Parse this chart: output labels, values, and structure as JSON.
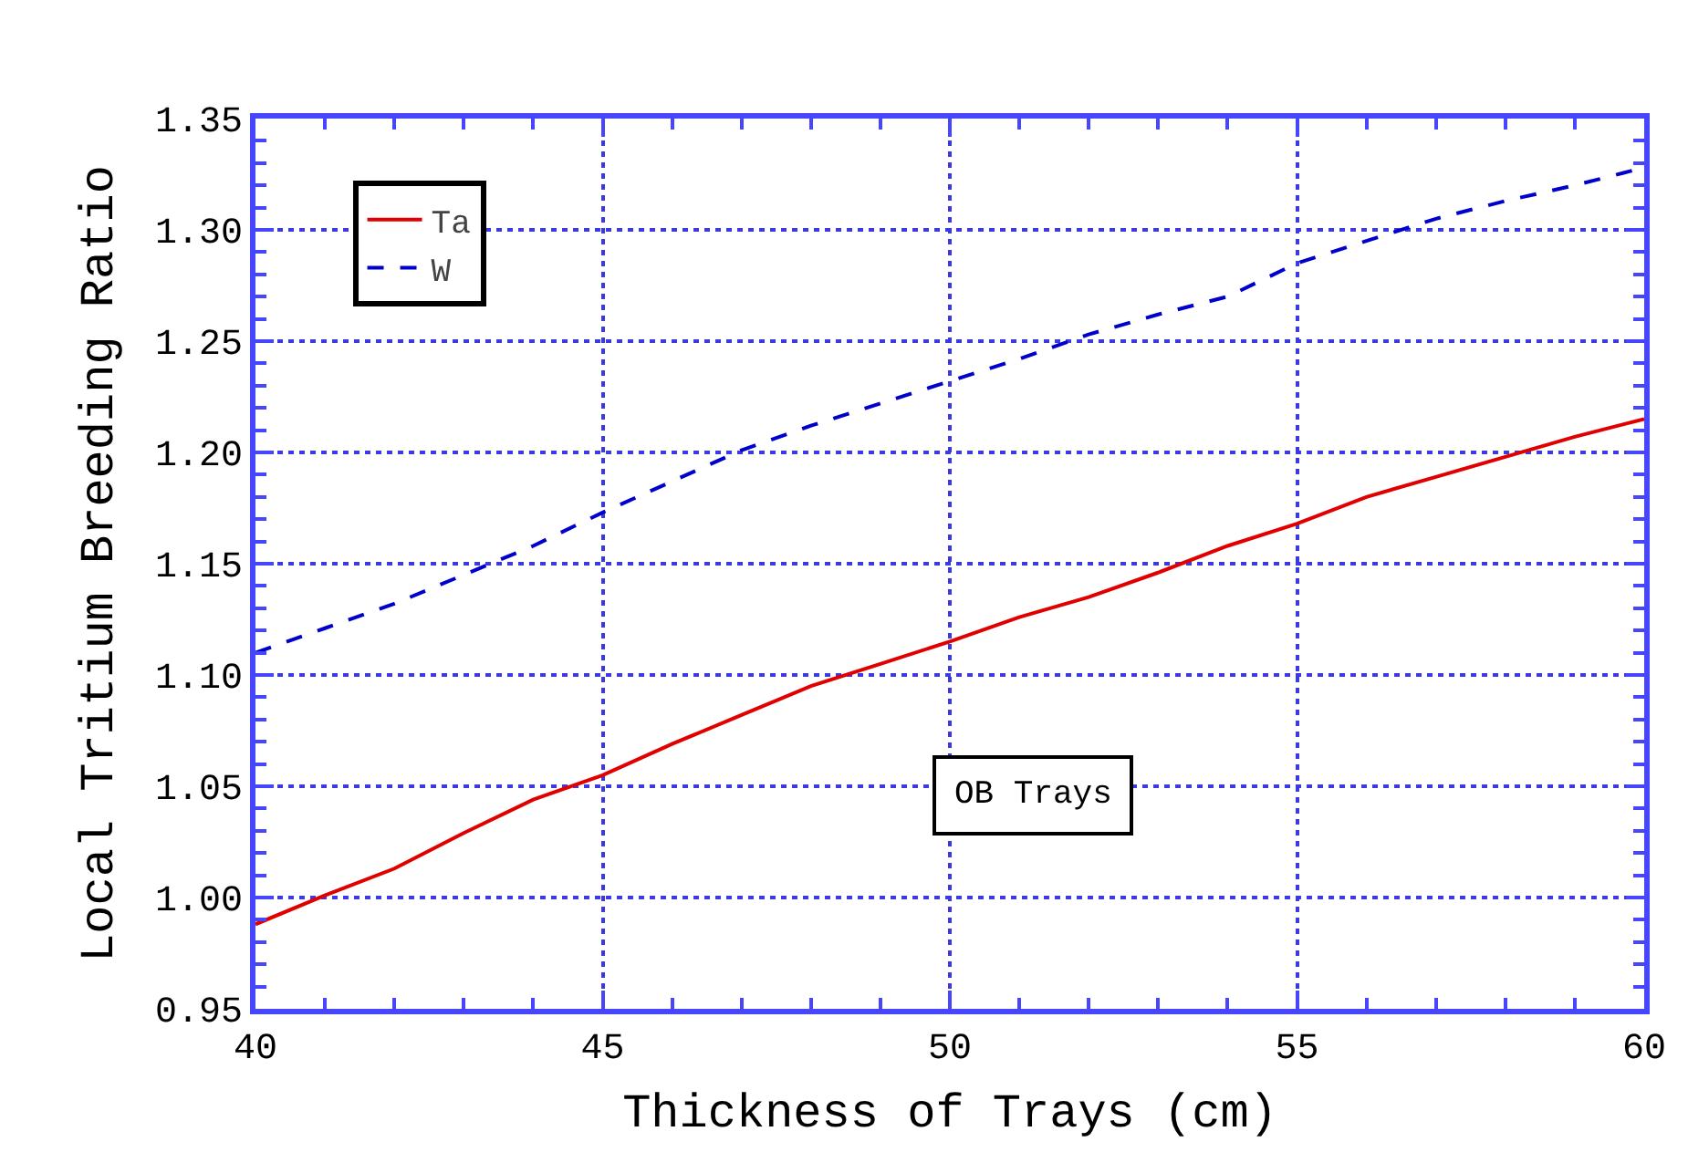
{
  "chart_data": {
    "type": "line",
    "xlabel": "Thickness of Trays (cm)",
    "ylabel": "Local Tritium Breeding Ratio",
    "x": [
      40,
      41,
      42,
      43,
      44,
      45,
      46,
      47,
      48,
      49,
      50,
      51,
      52,
      53,
      54,
      55,
      56,
      57,
      58,
      59,
      60
    ],
    "series": [
      {
        "name": "Ta",
        "color": "#e00000",
        "line_style": "solid",
        "values": [
          0.988,
          1.001,
          1.013,
          1.029,
          1.044,
          1.055,
          1.069,
          1.082,
          1.095,
          1.105,
          1.115,
          1.126,
          1.135,
          1.146,
          1.158,
          1.168,
          1.18,
          1.189,
          1.198,
          1.207,
          1.215
        ]
      },
      {
        "name": "W",
        "color": "#0000cc",
        "line_style": "dashed",
        "values": [
          1.11,
          1.121,
          1.132,
          1.145,
          1.158,
          1.173,
          1.187,
          1.201,
          1.212,
          1.222,
          1.232,
          1.242,
          1.253,
          1.262,
          1.27,
          1.285,
          1.295,
          1.305,
          1.313,
          1.32,
          1.328
        ]
      }
    ],
    "xlim": [
      40,
      60
    ],
    "xticks": [
      40,
      45,
      50,
      55,
      60
    ],
    "ylim": [
      0.95,
      1.35
    ],
    "yticks": [
      {
        "value": 0.95,
        "label": "0.95"
      },
      {
        "value": 1.0,
        "label": "1.00"
      },
      {
        "value": 1.05,
        "label": "1.05"
      },
      {
        "value": 1.1,
        "label": "1.10"
      },
      {
        "value": 1.15,
        "label": "1.15"
      },
      {
        "value": 1.2,
        "label": "1.20"
      },
      {
        "value": 1.25,
        "label": "1.25"
      },
      {
        "value": 1.3,
        "label": "1.30"
      },
      {
        "value": 1.35,
        "label": "1.35"
      }
    ],
    "grid": true,
    "legend": "top left",
    "marker": "none",
    "annotations": [
      "OB Trays"
    ]
  }
}
